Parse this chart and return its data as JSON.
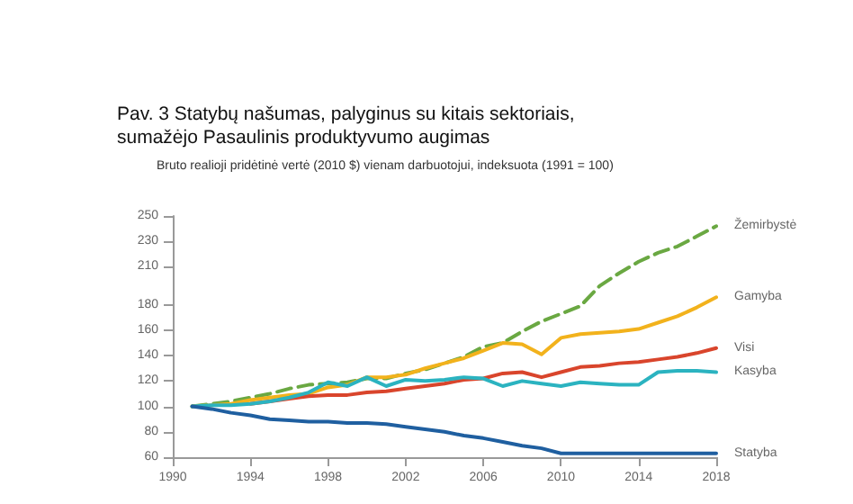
{
  "chart_data": {
    "type": "line",
    "title": "Pav. 3 Statybų našumas, palyginus su kitais sektoriais, sumažėjo Pasaulinis produktyvumo augimas",
    "subtitle": "Bruto realioji pridėtinė vertė (2010 $) vienam darbuotojui, indeksuota (1991 = 100)",
    "x": [
      1991,
      1992,
      1993,
      1994,
      1995,
      1996,
      1997,
      1998,
      1999,
      2000,
      2001,
      2002,
      2003,
      2004,
      2005,
      2006,
      2007,
      2008,
      2009,
      2010,
      2011,
      2012,
      2013,
      2014,
      2015,
      2016,
      2017,
      2018
    ],
    "xlim": [
      1990,
      2018
    ],
    "xticks": [
      1990,
      1994,
      1998,
      2002,
      2006,
      2010,
      2014,
      2018
    ],
    "ylim": [
      60,
      250
    ],
    "yticks": [
      60,
      80,
      100,
      120,
      140,
      160,
      180,
      210,
      230,
      250
    ],
    "grid": false,
    "legend": false,
    "marker": "none",
    "series": [
      {
        "name": "Žemirbystė",
        "color": "#6aa842",
        "line_style": "dashed",
        "values": [
          100,
          102,
          104,
          107,
          110,
          114,
          117,
          118,
          119,
          122,
          122,
          126,
          129,
          134,
          139,
          147,
          150,
          159,
          167,
          173,
          179,
          195,
          205,
          214,
          221,
          226,
          234,
          242
        ]
      },
      {
        "name": "Gamyba",
        "color": "#f2b21c",
        "values": [
          100,
          101,
          102,
          105,
          107,
          109,
          110,
          115,
          117,
          123,
          123,
          125,
          130,
          134,
          138,
          144,
          150,
          149,
          141,
          154,
          157,
          158,
          159,
          161,
          166,
          171,
          178,
          186
        ]
      },
      {
        "name": "Visi",
        "color": "#d9452c",
        "values": [
          null,
          null,
          null,
          102,
          104,
          106,
          108,
          109,
          109,
          111,
          112,
          114,
          116,
          118,
          121,
          122,
          126,
          127,
          123,
          127,
          131,
          132,
          134,
          135,
          137,
          139,
          142,
          146
        ]
      },
      {
        "name": "Kasyba",
        "color": "#2bb3c0",
        "values": [
          100,
          101,
          101,
          102,
          104,
          107,
          111,
          119,
          116,
          123,
          116,
          121,
          120,
          121,
          123,
          122,
          116,
          120,
          118,
          116,
          119,
          118,
          117,
          117,
          127,
          128,
          128,
          127
        ]
      },
      {
        "name": "Statyba",
        "color": "#1f5fa0",
        "values": [
          100,
          98,
          95,
          93,
          90,
          89,
          88,
          88,
          87,
          87,
          86,
          84,
          82,
          80,
          77,
          75,
          72,
          69,
          67,
          63,
          63,
          63,
          63,
          63,
          63,
          63,
          63,
          63
        ]
      }
    ]
  }
}
